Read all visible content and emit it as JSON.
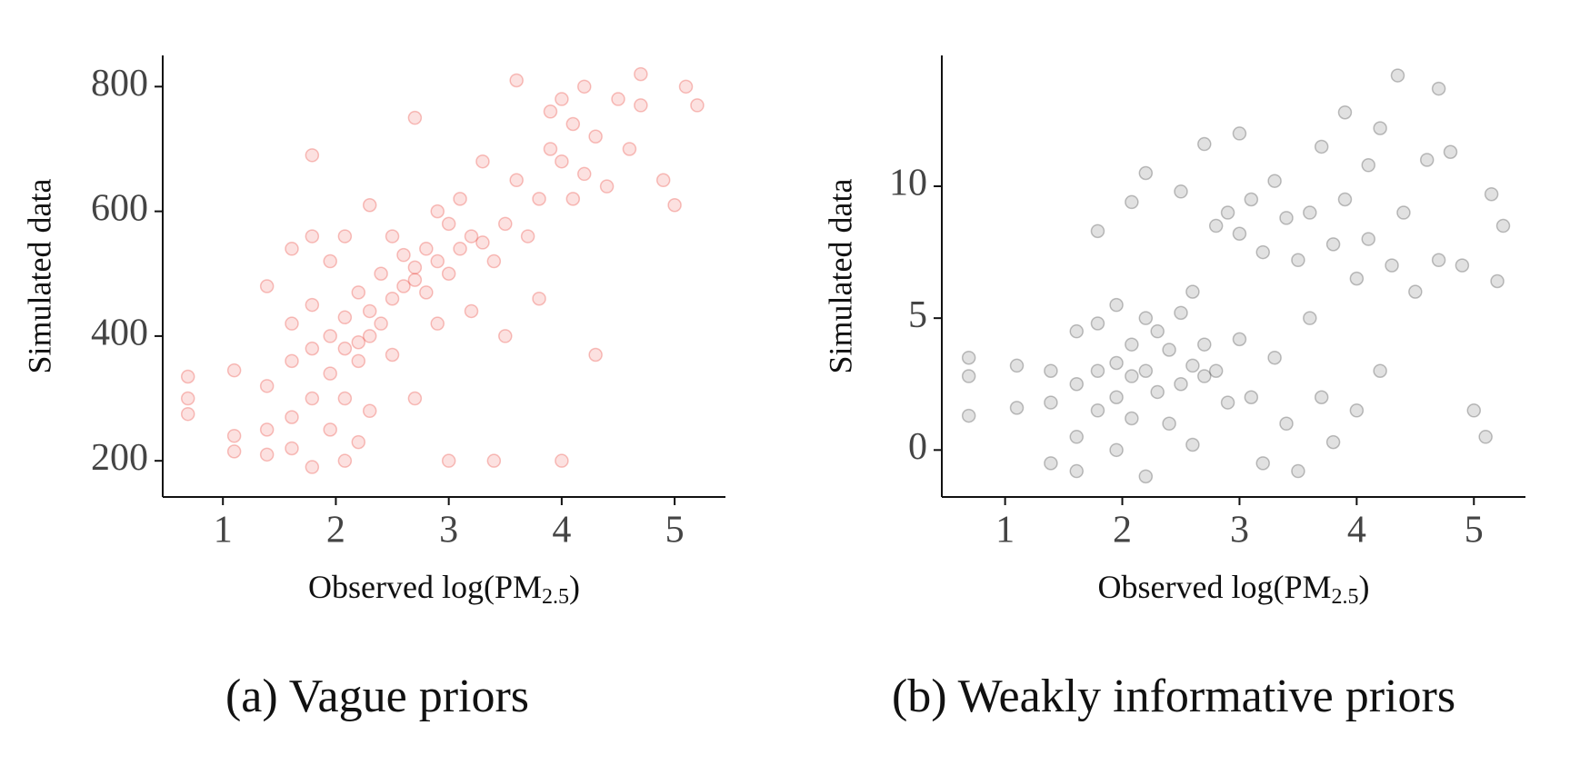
{
  "chart_data": [
    {
      "type": "scatter",
      "caption": "(a) Vague priors",
      "ylabel": "Simulated data",
      "xlabel": [
        "Observed log(PM",
        "2.5",
        ")"
      ],
      "color": "#e8362c",
      "xlim": [
        0.467,
        5.45
      ],
      "ylim": [
        142,
        850
      ],
      "xticks": [
        1,
        2,
        3,
        4,
        5
      ],
      "yticks": [
        200,
        400,
        600,
        800
      ],
      "x": [
        0.69,
        0.69,
        0.69,
        1.1,
        1.1,
        1.1,
        1.39,
        1.39,
        1.39,
        1.39,
        1.61,
        1.61,
        1.61,
        1.61,
        1.61,
        1.79,
        1.79,
        1.79,
        1.79,
        1.79,
        1.79,
        1.95,
        1.95,
        1.95,
        1.95,
        2.08,
        2.08,
        2.08,
        2.08,
        2.08,
        2.2,
        2.2,
        2.2,
        2.2,
        2.3,
        2.3,
        2.3,
        2.3,
        2.4,
        2.4,
        2.5,
        2.5,
        2.5,
        2.6,
        2.6,
        2.7,
        2.7,
        2.7,
        2.7,
        2.8,
        2.8,
        2.9,
        2.9,
        2.9,
        3.0,
        3.0,
        3.0,
        3.1,
        3.1,
        3.2,
        3.2,
        3.3,
        3.3,
        3.4,
        3.4,
        3.5,
        3.5,
        3.6,
        3.6,
        3.7,
        3.8,
        3.8,
        3.9,
        3.9,
        4.0,
        4.0,
        4.0,
        4.1,
        4.1,
        4.2,
        4.2,
        4.3,
        4.3,
        4.4,
        4.5,
        4.6,
        4.7,
        4.7,
        4.9,
        5.0,
        5.1,
        5.2
      ],
      "values": [
        335,
        275,
        300,
        345,
        240,
        215,
        480,
        320,
        250,
        210,
        540,
        420,
        360,
        270,
        220,
        690,
        560,
        450,
        380,
        300,
        190,
        520,
        400,
        340,
        250,
        560,
        430,
        380,
        300,
        200,
        470,
        390,
        360,
        230,
        610,
        440,
        400,
        280,
        500,
        420,
        560,
        460,
        370,
        530,
        480,
        750,
        510,
        490,
        300,
        540,
        470,
        600,
        520,
        420,
        580,
        500,
        200,
        620,
        540,
        560,
        440,
        680,
        550,
        520,
        200,
        580,
        400,
        810,
        650,
        560,
        620,
        460,
        760,
        700,
        780,
        680,
        200,
        740,
        620,
        800,
        660,
        720,
        370,
        640,
        780,
        700,
        820,
        770,
        650,
        610,
        800,
        770
      ]
    },
    {
      "type": "scatter",
      "caption": "(b) Weakly informative priors",
      "ylabel": "Simulated data",
      "xlabel": [
        "Observed log(PM",
        "2.5",
        ")"
      ],
      "color": "#333333",
      "xlim": [
        0.46,
        5.44
      ],
      "ylim": [
        -1.78,
        14.96
      ],
      "xticks": [
        1,
        2,
        3,
        4,
        5
      ],
      "yticks": [
        0,
        5,
        10
      ],
      "x": [
        0.69,
        0.69,
        0.69,
        1.1,
        1.1,
        1.39,
        1.39,
        1.39,
        1.61,
        1.61,
        1.61,
        1.61,
        1.79,
        1.79,
        1.79,
        1.79,
        1.95,
        1.95,
        1.95,
        1.95,
        2.08,
        2.08,
        2.08,
        2.08,
        2.2,
        2.2,
        2.2,
        2.2,
        2.3,
        2.3,
        2.4,
        2.4,
        2.5,
        2.5,
        2.5,
        2.6,
        2.6,
        2.6,
        2.7,
        2.7,
        2.7,
        2.8,
        2.8,
        2.9,
        2.9,
        3.0,
        3.0,
        3.0,
        3.1,
        3.1,
        3.2,
        3.2,
        3.3,
        3.3,
        3.4,
        3.4,
        3.5,
        3.5,
        3.6,
        3.6,
        3.7,
        3.7,
        3.8,
        3.8,
        3.9,
        3.9,
        4.0,
        4.0,
        4.1,
        4.1,
        4.2,
        4.2,
        4.3,
        4.35,
        4.4,
        4.5,
        4.6,
        4.7,
        4.7,
        4.8,
        4.9,
        5.0,
        5.1,
        5.15,
        5.2,
        5.25
      ],
      "values": [
        3.5,
        2.8,
        1.3,
        3.2,
        1.6,
        3.0,
        1.8,
        -0.5,
        4.5,
        2.5,
        0.5,
        -0.8,
        8.3,
        4.8,
        3.0,
        1.5,
        5.5,
        3.3,
        2.0,
        0.0,
        9.4,
        4.0,
        2.8,
        1.2,
        10.5,
        5.0,
        3.0,
        -1.0,
        4.5,
        2.2,
        3.8,
        1.0,
        9.8,
        5.2,
        2.5,
        6.0,
        3.2,
        0.2,
        11.6,
        4.0,
        2.8,
        8.5,
        3.0,
        9.0,
        1.8,
        12.0,
        8.2,
        4.2,
        9.5,
        2.0,
        7.5,
        -0.5,
        10.2,
        3.5,
        8.8,
        1.0,
        7.2,
        -0.8,
        9.0,
        5.0,
        11.5,
        2.0,
        7.8,
        0.3,
        12.8,
        9.5,
        6.5,
        1.5,
        10.8,
        8.0,
        12.2,
        3.0,
        7.0,
        14.2,
        9.0,
        6.0,
        11.0,
        13.7,
        7.2,
        11.3,
        7.0,
        1.5,
        0.5,
        9.7,
        6.4,
        8.5
      ]
    }
  ]
}
